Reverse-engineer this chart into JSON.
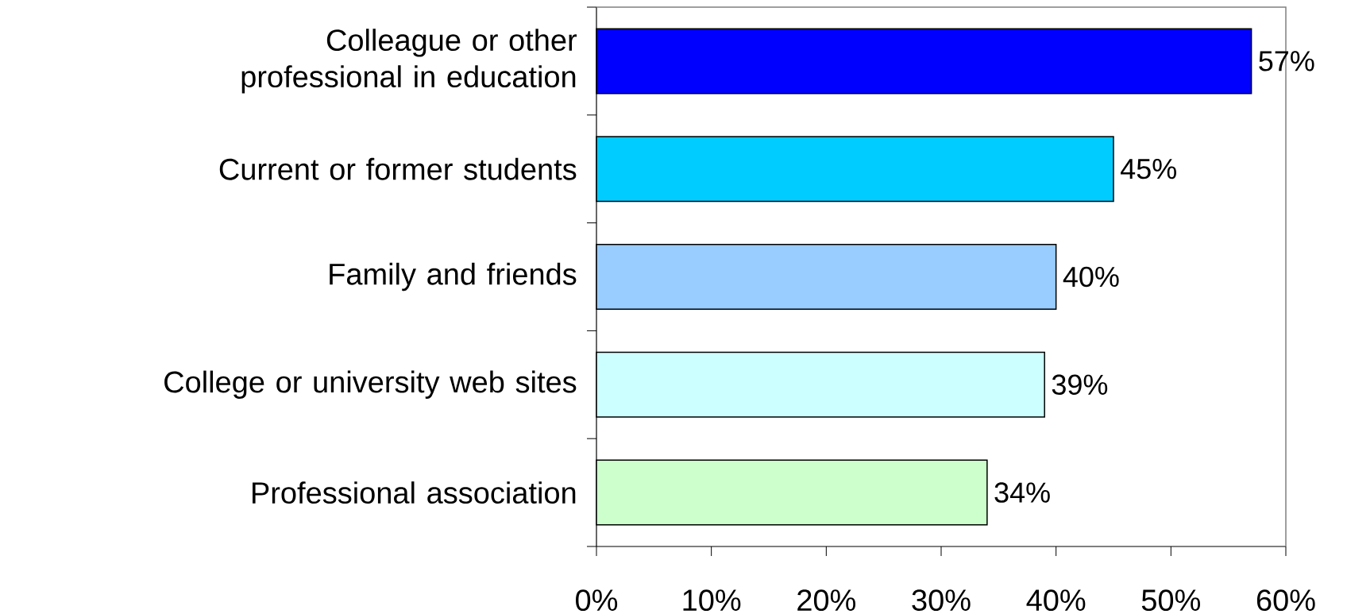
{
  "chart_data": {
    "type": "bar",
    "orientation": "horizontal",
    "categories": [
      "Colleague or other professional in education",
      "Current or former students",
      "Family and friends",
      "College or university web sites",
      "Professional association"
    ],
    "values": [
      57,
      45,
      40,
      39,
      34
    ],
    "colors": [
      "#0000ff",
      "#00ccff",
      "#99ccff",
      "#ccffff",
      "#ccffcc"
    ],
    "value_labels": [
      "57%",
      "45%",
      "40%",
      "39%",
      "34%"
    ],
    "xlim": [
      0,
      60
    ],
    "xticks": [
      {
        "value": 0,
        "label": "0%"
      },
      {
        "value": 10,
        "label": "10%"
      },
      {
        "value": 20,
        "label": "20%"
      },
      {
        "value": 30,
        "label": "30%"
      },
      {
        "value": 40,
        "label": "40%"
      },
      {
        "value": 50,
        "label": "50%"
      },
      {
        "value": 60,
        "label": "60%"
      }
    ],
    "grid": false
  }
}
